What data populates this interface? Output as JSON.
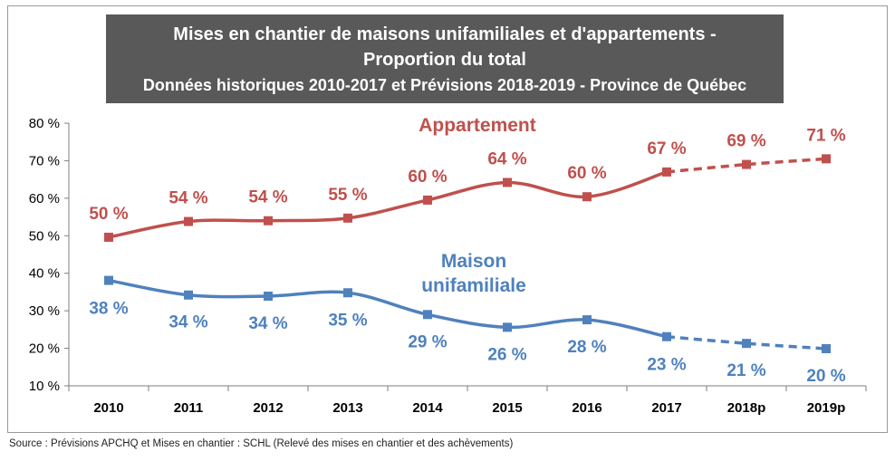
{
  "title": {
    "line1": "Mises en chantier de maisons unifamiliales et d'appartements -",
    "line2": "Proportion du total",
    "line3": "Données historiques 2010-2017 et Prévisions 2018-2019 - Province de Québec"
  },
  "source": "Source : Prévisions APCHQ et Mises en chantier : SCHL (Relevé des mises en chantier et des achèvements)",
  "chart_data": {
    "type": "line",
    "categories": [
      "2010",
      "2011",
      "2012",
      "2013",
      "2014",
      "2015",
      "2016",
      "2017",
      "2018p",
      "2019p"
    ],
    "ylim": [
      10,
      80
    ],
    "yticks": [
      "10 %",
      "20 %",
      "30 %",
      "40 %",
      "50 %",
      "60 %",
      "70 %",
      "80 %"
    ],
    "forecast_from_index": 7,
    "series": [
      {
        "name": "Appartement",
        "color": "#c0504d",
        "values": [
          49.6,
          53.8,
          54.0,
          54.7,
          59.5,
          64.2,
          60.4,
          67.0,
          69.0,
          70.5
        ],
        "labels": [
          "50 %",
          "54 %",
          "54 %",
          "55 %",
          "60 %",
          "64 %",
          "60 %",
          "67 %",
          "69 %",
          "71 %"
        ]
      },
      {
        "name": "Maison unifamiliale",
        "color": "#4f81bd",
        "values": [
          38.1,
          34.2,
          33.9,
          34.8,
          29.0,
          25.6,
          27.6,
          23.1,
          21.3,
          19.9
        ],
        "labels": [
          "38 %",
          "34 %",
          "34 %",
          "35 %",
          "29 %",
          "26 %",
          "28 %",
          "23 %",
          "21 %",
          "20 %"
        ]
      }
    ],
    "series_label_lines": {
      "Appartement": [
        "Appartement"
      ],
      "Maison unifamiliale": [
        "Maison",
        "unifamiliale"
      ]
    }
  }
}
